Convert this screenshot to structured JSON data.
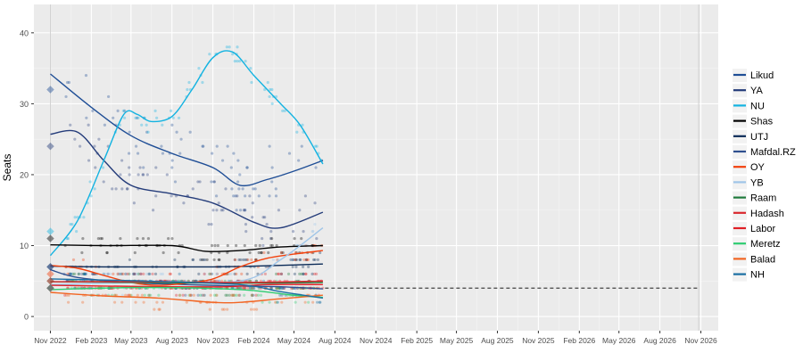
{
  "chart_data": {
    "type": "scatter",
    "title": "",
    "ylabel": "Seats",
    "xlabel": "",
    "ylim": [
      -2,
      44
    ],
    "xlim": [
      "2022-09-25",
      "2026-12-10"
    ],
    "y_ticks": [
      0,
      10,
      20,
      30,
      40
    ],
    "x_ticks": [
      {
        "label": "Nov 2022",
        "date": "2022-11-01"
      },
      {
        "label": "Feb 2023",
        "date": "2023-02-01"
      },
      {
        "label": "May 2023",
        "date": "2023-05-01"
      },
      {
        "label": "Aug 2023",
        "date": "2023-08-01"
      },
      {
        "label": "Nov 2023",
        "date": "2023-11-01"
      },
      {
        "label": "Feb 2024",
        "date": "2024-02-01"
      },
      {
        "label": "May 2024",
        "date": "2024-05-01"
      },
      {
        "label": "Aug 2024",
        "date": "2024-08-01"
      },
      {
        "label": "Nov 2024",
        "date": "2024-11-01"
      },
      {
        "label": "Feb 2025",
        "date": "2025-02-01"
      },
      {
        "label": "May 2025",
        "date": "2025-05-01"
      },
      {
        "label": "Aug 2025",
        "date": "2025-08-01"
      },
      {
        "label": "Nov 2025",
        "date": "2025-11-01"
      },
      {
        "label": "Feb 2026",
        "date": "2026-02-01"
      },
      {
        "label": "May 2026",
        "date": "2026-05-01"
      },
      {
        "label": "Aug 2026",
        "date": "2026-08-01"
      },
      {
        "label": "Nov 2026",
        "date": "2026-11-01"
      }
    ],
    "vertical_lines": [
      "2022-11-01",
      "2026-10-27"
    ],
    "threshold": {
      "y": 4,
      "from": "2024-07-10",
      "to": "2026-10-27",
      "color": "#444444"
    },
    "grid": true,
    "legend_position": "right",
    "series": [
      {
        "name": "Likud",
        "color": "#1f4e96",
        "election": {
          "x": "2022-11-01",
          "y": 32
        },
        "trend": [
          [
            "2022-11-01",
            34.2
          ],
          [
            "2023-02-01",
            29.5
          ],
          [
            "2023-05-01",
            25.5
          ],
          [
            "2023-08-01",
            23
          ],
          [
            "2023-11-01",
            21
          ],
          [
            "2024-01-01",
            18.5
          ],
          [
            "2024-03-01",
            19.3
          ],
          [
            "2024-05-01",
            20.5
          ],
          [
            "2024-07-05",
            22
          ]
        ]
      },
      {
        "name": "YA",
        "color": "#243c7a",
        "election": {
          "x": "2022-11-01",
          "y": 24
        },
        "trend": [
          [
            "2022-11-01",
            25.7
          ],
          [
            "2023-01-01",
            26
          ],
          [
            "2023-03-01",
            22
          ],
          [
            "2023-05-01",
            18.5
          ],
          [
            "2023-08-01",
            17.3
          ],
          [
            "2023-11-01",
            16
          ],
          [
            "2024-02-01",
            13.3
          ],
          [
            "2024-04-01",
            12.5
          ],
          [
            "2024-07-05",
            14.7
          ]
        ]
      },
      {
        "name": "NU",
        "color": "#13b3e1",
        "election": {
          "x": "2022-11-01",
          "y": 12
        },
        "trend": [
          [
            "2022-11-01",
            8.6
          ],
          [
            "2023-01-01",
            13.5
          ],
          [
            "2023-03-01",
            22
          ],
          [
            "2023-04-15",
            28.5
          ],
          [
            "2023-05-15",
            28.5
          ],
          [
            "2023-06-15",
            27.5
          ],
          [
            "2023-08-01",
            28.2
          ],
          [
            "2023-09-15",
            32
          ],
          [
            "2023-11-01",
            36.5
          ],
          [
            "2023-12-15",
            37.3
          ],
          [
            "2024-02-01",
            34
          ],
          [
            "2024-04-01",
            30
          ],
          [
            "2024-05-15",
            27
          ],
          [
            "2024-07-05",
            21.5
          ]
        ]
      },
      {
        "name": "Shas",
        "color": "#000000",
        "election": {
          "x": "2022-11-01",
          "y": 11
        },
        "trend": [
          [
            "2022-11-01",
            10.1
          ],
          [
            "2023-03-01",
            10
          ],
          [
            "2023-08-01",
            10
          ],
          [
            "2023-10-15",
            9.2
          ],
          [
            "2024-01-01",
            9.3
          ],
          [
            "2024-04-01",
            9.8
          ],
          [
            "2024-07-05",
            10
          ]
        ]
      },
      {
        "name": "UTJ",
        "color": "#0a2a57",
        "election": {
          "x": "2022-11-01",
          "y": 7
        },
        "trend": [
          [
            "2022-11-01",
            7.1
          ],
          [
            "2023-03-01",
            7
          ],
          [
            "2023-08-01",
            7
          ],
          [
            "2023-11-01",
            7
          ],
          [
            "2024-02-01",
            7.1
          ],
          [
            "2024-07-05",
            7.4
          ]
        ]
      },
      {
        "name": "Mafdal.RZ",
        "color": "#2f4f8f",
        "election": {
          "x": "2022-11-01",
          "y": 7
        },
        "trend": [
          [
            "2022-11-01",
            6.6
          ],
          [
            "2023-01-01",
            5.5
          ],
          [
            "2023-05-01",
            4.8
          ],
          [
            "2023-09-01",
            4.5
          ],
          [
            "2024-01-01",
            4.3
          ],
          [
            "2024-04-01",
            4.2
          ],
          [
            "2024-07-05",
            3.9
          ]
        ]
      },
      {
        "name": "OY",
        "color": "#f2410d",
        "election": {
          "x": "2022-11-01",
          "y": 6
        },
        "trend": [
          [
            "2022-11-01",
            7.2
          ],
          [
            "2023-01-01",
            6.8
          ],
          [
            "2023-03-01",
            5.8
          ],
          [
            "2023-05-01",
            4.8
          ],
          [
            "2023-07-01",
            4.4
          ],
          [
            "2023-09-01",
            4.7
          ],
          [
            "2023-11-01",
            5.3
          ],
          [
            "2024-01-01",
            7
          ],
          [
            "2024-03-01",
            8.2
          ],
          [
            "2024-05-01",
            8.8
          ],
          [
            "2024-07-05",
            9.3
          ]
        ]
      },
      {
        "name": "YB",
        "color": "#9fc5e8",
        "election": {
          "x": "2022-11-01",
          "y": 4
        },
        "trend": [
          [
            "2022-11-01",
            4.5
          ],
          [
            "2023-06-01",
            4.8
          ],
          [
            "2024-01-01",
            5
          ],
          [
            "2024-04-01",
            8
          ],
          [
            "2024-07-05",
            12.5
          ]
        ]
      },
      {
        "name": "Raam",
        "color": "#1f7a3c",
        "election": {
          "x": "2022-11-01",
          "y": 5
        },
        "trend": [
          [
            "2022-11-01",
            4.9
          ],
          [
            "2023-06-01",
            4.8
          ],
          [
            "2024-01-01",
            4.7
          ],
          [
            "2024-07-05",
            4.8
          ]
        ]
      },
      {
        "name": "Hadash",
        "color": "#d9282e",
        "election": {
          "x": "2022-11-01",
          "y": 5
        },
        "trend": [
          [
            "2022-11-01",
            4.9
          ],
          [
            "2023-06-01",
            4.9
          ],
          [
            "2024-01-01",
            4.8
          ],
          [
            "2024-07-05",
            5
          ]
        ]
      },
      {
        "name": "Labor",
        "color": "#e01f26",
        "election": {
          "x": "2022-11-01",
          "y": 4
        },
        "trend": [
          [
            "2022-11-01",
            4.4
          ],
          [
            "2023-03-01",
            4.3
          ],
          [
            "2023-08-01",
            4.2
          ],
          [
            "2023-12-01",
            4.2
          ],
          [
            "2024-03-01",
            4.5
          ],
          [
            "2024-07-05",
            4.5
          ]
        ]
      },
      {
        "name": "Meretz",
        "color": "#2ecc71",
        "election": {
          "x": "2022-11-01",
          "y": 4
        },
        "trend": [
          [
            "2022-11-01",
            3.8
          ],
          [
            "2023-06-01",
            4.1
          ],
          [
            "2024-01-01",
            3.8
          ],
          [
            "2024-05-01",
            3
          ],
          [
            "2024-07-05",
            2.7
          ]
        ]
      },
      {
        "name": "Balad",
        "color": "#f26522",
        "election": {
          "x": "2022-11-01",
          "y": 4
        },
        "trend": [
          [
            "2022-11-01",
            3.4
          ],
          [
            "2023-03-01",
            2.9
          ],
          [
            "2023-07-01",
            2.6
          ],
          [
            "2023-11-01",
            2
          ],
          [
            "2024-01-01",
            2
          ],
          [
            "2024-04-01",
            2.5
          ],
          [
            "2024-07-05",
            3
          ]
        ]
      },
      {
        "name": "NH",
        "color": "#1a6fa3",
        "election": {
          "x": "2022-11-01",
          "y": 4
        },
        "trend": [
          [
            "2022-11-01",
            5.3
          ],
          [
            "2023-06-01",
            5
          ],
          [
            "2024-01-01",
            4.5
          ],
          [
            "2024-04-01",
            3.5
          ],
          [
            "2024-07-05",
            2.6
          ]
        ]
      }
    ]
  }
}
